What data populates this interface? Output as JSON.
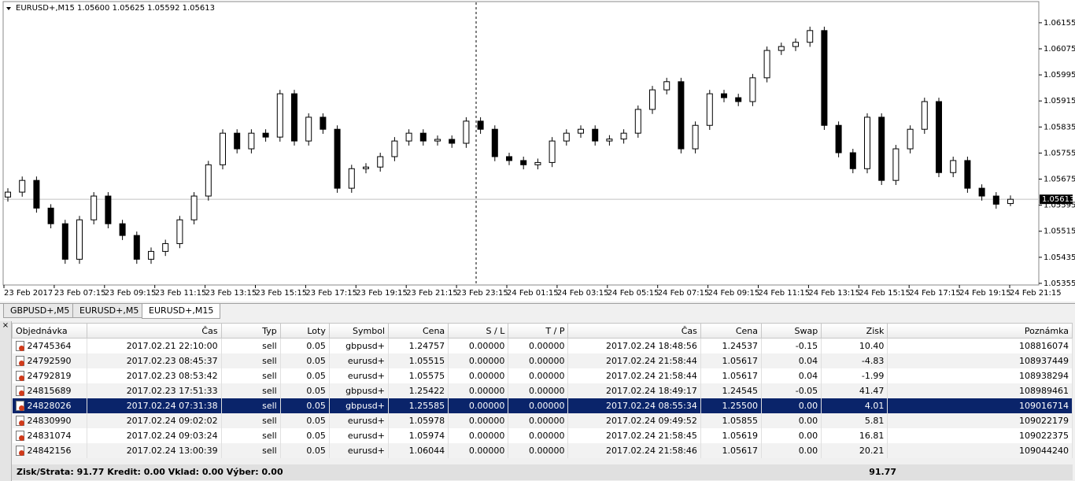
{
  "chart_data": {
    "type": "candlestick",
    "title": "EURUSD+,M15  1.05600 1.05625 1.05592 1.05613",
    "last_price": 1.05613,
    "ylim": [
      1.0535,
      1.0622
    ],
    "yticks": [
      1.05355,
      1.05435,
      1.05515,
      1.05595,
      1.05675,
      1.05755,
      1.05835,
      1.05915,
      1.05995,
      1.06075,
      1.06155
    ],
    "x_labels": [
      "23 Feb 2017",
      "23 Feb 07:15",
      "23 Feb 09:15",
      "23 Feb 11:15",
      "23 Feb 13:15",
      "23 Feb 15:15",
      "23 Feb 17:15",
      "23 Feb 19:15",
      "23 Feb 21:15",
      "23 Feb 23:15",
      "24 Feb 01:15",
      "24 Feb 03:15",
      "24 Feb 05:15",
      "24 Feb 07:15",
      "24 Feb 09:15",
      "24 Feb 11:15",
      "24 Feb 13:15",
      "24 Feb 15:15",
      "24 Feb 17:15",
      "24 Feb 19:15",
      "24 Feb 21:15"
    ],
    "up_color": "#ffffff",
    "down_color": "#000000",
    "ohlc": [
      [
        1.0562,
        1.05647,
        1.05606,
        1.05635
      ],
      [
        1.05635,
        1.05683,
        1.05621,
        1.05671
      ],
      [
        1.05671,
        1.05683,
        1.05572,
        1.05586
      ],
      [
        1.05586,
        1.05598,
        1.05524,
        1.05538
      ],
      [
        1.05538,
        1.0555,
        1.05415,
        1.05429
      ],
      [
        1.05429,
        1.05562,
        1.05415,
        1.0555
      ],
      [
        1.0555,
        1.05635,
        1.05536,
        1.05623
      ],
      [
        1.05623,
        1.05635,
        1.05524,
        1.05538
      ],
      [
        1.05538,
        1.0555,
        1.05488,
        1.05502
      ],
      [
        1.05502,
        1.05514,
        1.05415,
        1.05429
      ],
      [
        1.05429,
        1.05465,
        1.05415,
        1.05453
      ],
      [
        1.05453,
        1.05489,
        1.05439,
        1.05477
      ],
      [
        1.05477,
        1.05562,
        1.05463,
        1.0555
      ],
      [
        1.0555,
        1.05635,
        1.05536,
        1.05623
      ],
      [
        1.05623,
        1.05731,
        1.05609,
        1.05719
      ],
      [
        1.05719,
        1.05828,
        1.05705,
        1.05816
      ],
      [
        1.05816,
        1.05828,
        1.05754,
        1.05768
      ],
      [
        1.05768,
        1.05828,
        1.05754,
        1.05816
      ],
      [
        1.05816,
        1.05828,
        1.0579,
        1.05804
      ],
      [
        1.05804,
        1.05949,
        1.0579,
        1.05937
      ],
      [
        1.05937,
        1.05949,
        1.05778,
        1.05792
      ],
      [
        1.05792,
        1.05877,
        1.05778,
        1.05865
      ],
      [
        1.05865,
        1.05877,
        1.05814,
        1.05828
      ],
      [
        1.05828,
        1.0584,
        1.05633,
        1.05647
      ],
      [
        1.05647,
        1.05719,
        1.05633,
        1.05707
      ],
      [
        1.05707,
        1.05724,
        1.05693,
        1.05712
      ],
      [
        1.05712,
        1.05756,
        1.05698,
        1.05744
      ],
      [
        1.05744,
        1.05804,
        1.0573,
        1.05792
      ],
      [
        1.05792,
        1.05828,
        1.05778,
        1.05816
      ],
      [
        1.05816,
        1.05828,
        1.05778,
        1.05792
      ],
      [
        1.05792,
        1.05809,
        1.05778,
        1.05797
      ],
      [
        1.05797,
        1.05809,
        1.05771,
        1.05785
      ],
      [
        1.05785,
        1.05865,
        1.05771,
        1.05853
      ],
      [
        1.05853,
        1.05865,
        1.05814,
        1.05828
      ],
      [
        1.05828,
        1.0584,
        1.0573,
        1.05744
      ],
      [
        1.05744,
        1.05756,
        1.05718,
        1.05732
      ],
      [
        1.05732,
        1.05744,
        1.05705,
        1.05719
      ],
      [
        1.05719,
        1.05738,
        1.05705,
        1.05726
      ],
      [
        1.05726,
        1.05804,
        1.05712,
        1.05792
      ],
      [
        1.05792,
        1.05828,
        1.05778,
        1.05816
      ],
      [
        1.05816,
        1.0584,
        1.05802,
        1.05828
      ],
      [
        1.05828,
        1.0584,
        1.05778,
        1.05792
      ],
      [
        1.05792,
        1.0581,
        1.05778,
        1.05798
      ],
      [
        1.05798,
        1.05828,
        1.05784,
        1.05816
      ],
      [
        1.05816,
        1.05901,
        1.05802,
        1.05889
      ],
      [
        1.05889,
        1.05961,
        1.05875,
        1.05949
      ],
      [
        1.05949,
        1.05986,
        1.05935,
        1.05974
      ],
      [
        1.05974,
        1.05986,
        1.05754,
        1.05768
      ],
      [
        1.05768,
        1.05852,
        1.05754,
        1.0584
      ],
      [
        1.0584,
        1.05949,
        1.05826,
        1.05937
      ],
      [
        1.05937,
        1.05949,
        1.05911,
        1.05925
      ],
      [
        1.05925,
        1.05937,
        1.05899,
        1.05913
      ],
      [
        1.05913,
        1.05998,
        1.05899,
        1.05986
      ],
      [
        1.05986,
        1.06082,
        1.05972,
        1.0607
      ],
      [
        1.0607,
        1.06094,
        1.06056,
        1.06082
      ],
      [
        1.06082,
        1.06107,
        1.06068,
        1.06095
      ],
      [
        1.06095,
        1.06143,
        1.06081,
        1.06131
      ],
      [
        1.06131,
        1.06143,
        1.05826,
        1.0584
      ],
      [
        1.0584,
        1.05852,
        1.05742,
        1.05756
      ],
      [
        1.05756,
        1.05768,
        1.05693,
        1.05707
      ],
      [
        1.05707,
        1.05877,
        1.05693,
        1.05865
      ],
      [
        1.05865,
        1.05877,
        1.05657,
        1.05671
      ],
      [
        1.05671,
        1.0578,
        1.05657,
        1.05768
      ],
      [
        1.05768,
        1.0584,
        1.05754,
        1.05828
      ],
      [
        1.05828,
        1.05925,
        1.05814,
        1.05913
      ],
      [
        1.05913,
        1.05925,
        1.05681,
        1.05695
      ],
      [
        1.05695,
        1.05744,
        1.05681,
        1.05732
      ],
      [
        1.05732,
        1.05744,
        1.05633,
        1.05647
      ],
      [
        1.05647,
        1.05659,
        1.05609,
        1.05623
      ],
      [
        1.05623,
        1.05635,
        1.05584,
        1.05598
      ],
      [
        1.056,
        1.05625,
        1.05592,
        1.05613
      ]
    ]
  },
  "tabs": [
    "GBPUSD+,M5",
    "EURUSD+,M5",
    "EURUSD+,M15"
  ],
  "active_tab": 2,
  "table": {
    "columns": [
      "Objednávka",
      "Čas",
      "Typ",
      "Loty",
      "Symbol",
      "Cena",
      "S / L",
      "T / P",
      "Čas",
      "Cena",
      "Swap",
      "Zisk",
      "Poznámka"
    ],
    "selected_row": 4,
    "rows": [
      [
        "24745364",
        "2017.02.21 22:10:00",
        "sell",
        "0.05",
        "gbpusd+",
        "1.24757",
        "0.00000",
        "0.00000",
        "2017.02.24 18:48:56",
        "1.24537",
        "-0.15",
        "10.40",
        "108816074"
      ],
      [
        "24792590",
        "2017.02.23 08:45:37",
        "sell",
        "0.05",
        "eurusd+",
        "1.05515",
        "0.00000",
        "0.00000",
        "2017.02.24 21:58:44",
        "1.05617",
        "0.04",
        "-4.83",
        "108937449"
      ],
      [
        "24792819",
        "2017.02.23 08:53:42",
        "sell",
        "0.05",
        "eurusd+",
        "1.05575",
        "0.00000",
        "0.00000",
        "2017.02.24 21:58:44",
        "1.05617",
        "0.04",
        "-1.99",
        "108938294"
      ],
      [
        "24815689",
        "2017.02.23 17:51:33",
        "sell",
        "0.05",
        "gbpusd+",
        "1.25422",
        "0.00000",
        "0.00000",
        "2017.02.24 18:49:17",
        "1.24545",
        "-0.05",
        "41.47",
        "108989461"
      ],
      [
        "24828026",
        "2017.02.24 07:31:38",
        "sell",
        "0.05",
        "gbpusd+",
        "1.25585",
        "0.00000",
        "0.00000",
        "2017.02.24 08:55:34",
        "1.25500",
        "0.00",
        "4.01",
        "109016714"
      ],
      [
        "24830990",
        "2017.02.24 09:02:02",
        "sell",
        "0.05",
        "eurusd+",
        "1.05978",
        "0.00000",
        "0.00000",
        "2017.02.24 09:49:52",
        "1.05855",
        "0.00",
        "5.81",
        "109022179"
      ],
      [
        "24831074",
        "2017.02.24 09:03:24",
        "sell",
        "0.05",
        "eurusd+",
        "1.05974",
        "0.00000",
        "0.00000",
        "2017.02.24 21:58:45",
        "1.05619",
        "0.00",
        "16.81",
        "109022375"
      ],
      [
        "24842156",
        "2017.02.24 13:00:39",
        "sell",
        "0.05",
        "eurusd+",
        "1.06044",
        "0.00000",
        "0.00000",
        "2017.02.24 21:58:46",
        "1.05617",
        "0.00",
        "20.21",
        "109044240"
      ]
    ]
  },
  "footer": {
    "summary": "Zisk/Strata: 91.77  Kredit: 0.00  Vklad: 0.00  Výber: 0.00",
    "total": "91.77"
  }
}
